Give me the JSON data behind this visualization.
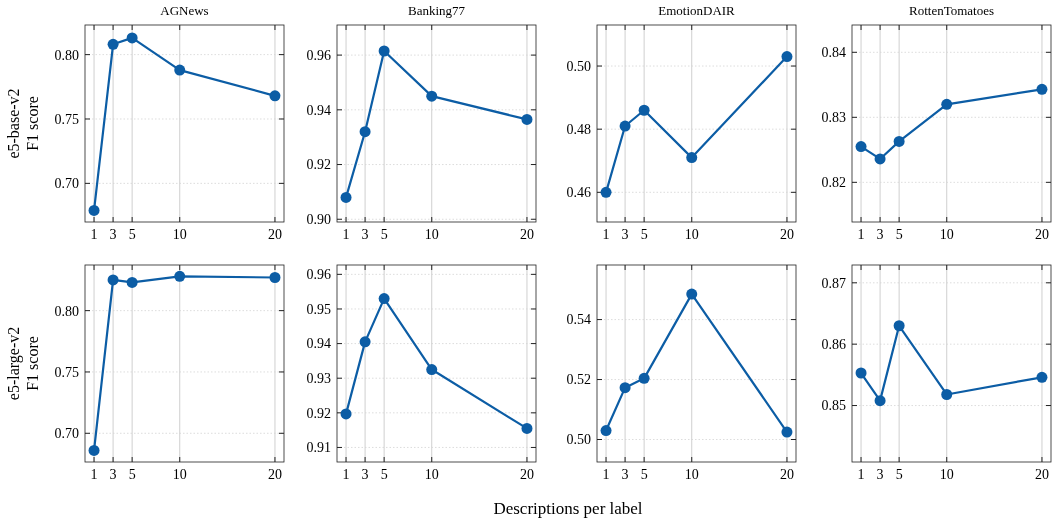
{
  "chart_data": [
    {
      "type": "line",
      "title": "AGNews",
      "ylabel": "e5-base-v2\nF1 score",
      "x": [
        1,
        3,
        5,
        10,
        20
      ],
      "series": [
        {
          "color": "#0c5da5",
          "values": [
            0.679,
            0.808,
            0.813,
            0.788,
            0.768
          ]
        }
      ],
      "xlim": [
        0.05,
        20.95
      ],
      "xticks": [
        1,
        3,
        5,
        10,
        20
      ],
      "ylim": [
        0.67,
        0.823
      ],
      "yticks": [
        {
          "value": 0.7,
          "label": "0.70"
        },
        {
          "value": 0.75,
          "label": "0.75"
        },
        {
          "value": 0.8,
          "label": "0.80"
        }
      ],
      "grid": true,
      "marker": "circle",
      "line_style": "solid"
    },
    {
      "type": "line",
      "title": "Banking77",
      "x": [
        1,
        3,
        5,
        10,
        20
      ],
      "series": [
        {
          "color": "#0c5da5",
          "values": [
            0.908,
            0.932,
            0.9615,
            0.945,
            0.9365
          ]
        }
      ],
      "xlim": [
        0.05,
        20.95
      ],
      "xticks": [
        1,
        3,
        5,
        10,
        20
      ],
      "ylim": [
        0.899,
        0.971
      ],
      "yticks": [
        {
          "value": 0.9,
          "label": "0.90"
        },
        {
          "value": 0.92,
          "label": "0.92"
        },
        {
          "value": 0.94,
          "label": "0.94"
        },
        {
          "value": 0.96,
          "label": "0.96"
        }
      ],
      "grid": true,
      "marker": "circle",
      "line_style": "solid"
    },
    {
      "type": "line",
      "title": "EmotionDAIR",
      "x": [
        1,
        3,
        5,
        10,
        20
      ],
      "series": [
        {
          "color": "#0c5da5",
          "values": [
            0.46,
            0.481,
            0.486,
            0.471,
            0.503
          ]
        }
      ],
      "xlim": [
        0.05,
        20.95
      ],
      "xticks": [
        1,
        3,
        5,
        10,
        20
      ],
      "ylim": [
        0.4506,
        0.513
      ],
      "yticks": [
        {
          "value": 0.46,
          "label": "0.46"
        },
        {
          "value": 0.48,
          "label": "0.48"
        },
        {
          "value": 0.5,
          "label": "0.50"
        }
      ],
      "grid": true,
      "marker": "circle",
      "line_style": "solid"
    },
    {
      "type": "line",
      "title": "RottenTomatoes",
      "x": [
        1,
        3,
        5,
        10,
        20
      ],
      "series": [
        {
          "color": "#0c5da5",
          "values": [
            0.8255,
            0.8236,
            0.8263,
            0.832,
            0.8343
          ]
        }
      ],
      "xlim": [
        0.05,
        20.95
      ],
      "xticks": [
        1,
        3,
        5,
        10,
        20
      ],
      "ylim": [
        0.8139,
        0.8442
      ],
      "yticks": [
        {
          "value": 0.82,
          "label": "0.82"
        },
        {
          "value": 0.83,
          "label": "0.83"
        },
        {
          "value": 0.84,
          "label": "0.84"
        }
      ],
      "grid": true,
      "marker": "circle",
      "line_style": "solid"
    },
    {
      "type": "line",
      "ylabel": "e5-large-v2\nF1 score",
      "x": [
        1,
        3,
        5,
        10,
        20
      ],
      "series": [
        {
          "color": "#0c5da5",
          "values": [
            0.686,
            0.825,
            0.823,
            0.828,
            0.827
          ]
        }
      ],
      "xlim": [
        0.05,
        20.95
      ],
      "xticks": [
        1,
        3,
        5,
        10,
        20
      ],
      "ylim": [
        0.6766,
        0.8372
      ],
      "yticks": [
        {
          "value": 0.7,
          "label": "0.70"
        },
        {
          "value": 0.75,
          "label": "0.75"
        },
        {
          "value": 0.8,
          "label": "0.80"
        }
      ],
      "grid": true,
      "marker": "circle",
      "line_style": "solid"
    },
    {
      "type": "line",
      "xlabel": "Descriptions per label",
      "x": [
        1,
        3,
        5,
        10,
        20
      ],
      "series": [
        {
          "color": "#0c5da5",
          "values": [
            0.9197,
            0.9405,
            0.953,
            0.9325,
            0.9155
          ]
        }
      ],
      "xlim": [
        0.05,
        20.95
      ],
      "xticks": [
        1,
        3,
        5,
        10,
        20
      ],
      "ylim": [
        0.9058,
        0.9627
      ],
      "yticks": [
        {
          "value": 0.91,
          "label": "0.91"
        },
        {
          "value": 0.92,
          "label": "0.92"
        },
        {
          "value": 0.93,
          "label": "0.93"
        },
        {
          "value": 0.94,
          "label": "0.94"
        },
        {
          "value": 0.95,
          "label": "0.95"
        },
        {
          "value": 0.96,
          "label": "0.96"
        }
      ],
      "grid": true,
      "marker": "circle",
      "line_style": "solid"
    },
    {
      "type": "line",
      "x": [
        1,
        3,
        5,
        10,
        20
      ],
      "series": [
        {
          "color": "#0c5da5",
          "values": [
            0.503,
            0.5173,
            0.5204,
            0.5485,
            0.5025
          ]
        }
      ],
      "xlim": [
        0.05,
        20.95
      ],
      "xticks": [
        1,
        3,
        5,
        10,
        20
      ],
      "ylim": [
        0.4925,
        0.5582
      ],
      "yticks": [
        {
          "value": 0.5,
          "label": "0.50"
        },
        {
          "value": 0.52,
          "label": "0.52"
        },
        {
          "value": 0.54,
          "label": "0.54"
        }
      ],
      "grid": true,
      "marker": "circle",
      "line_style": "solid"
    },
    {
      "type": "line",
      "x": [
        1,
        3,
        5,
        10,
        20
      ],
      "series": [
        {
          "color": "#0c5da5",
          "values": [
            0.8553,
            0.8508,
            0.863,
            0.8518,
            0.8546
          ]
        }
      ],
      "xlim": [
        0.05,
        20.95
      ],
      "xticks": [
        1,
        3,
        5,
        10,
        20
      ],
      "ylim": [
        0.8408,
        0.8729
      ],
      "yticks": [
        {
          "value": 0.85,
          "label": "0.85"
        },
        {
          "value": 0.86,
          "label": "0.86"
        },
        {
          "value": 0.87,
          "label": "0.87"
        }
      ],
      "grid": true,
      "marker": "circle",
      "line_style": "solid"
    }
  ]
}
